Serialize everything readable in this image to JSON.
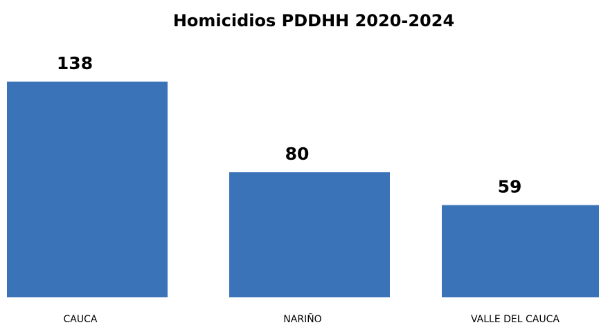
{
  "chart_data": {
    "type": "bar",
    "title": "Homicidios PDDHH 2020-2024",
    "categories": [
      "CAUCA",
      "NARIÑO",
      "VALLE DEL CAUCA"
    ],
    "values": [
      138,
      80,
      59
    ],
    "xlabel": "",
    "ylabel": "",
    "ylim": [
      0,
      138
    ],
    "grid": false,
    "legend": "none",
    "data_labels": true,
    "bar_color": "#3B73B9"
  }
}
